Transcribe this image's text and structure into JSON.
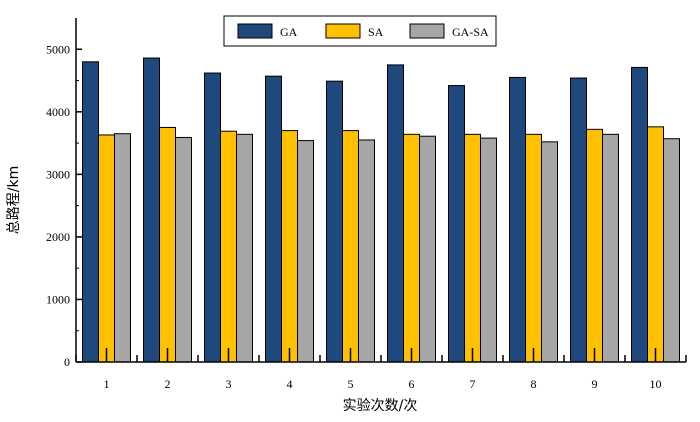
{
  "chart_data": {
    "type": "bar",
    "title": "",
    "xlabel": "实验次数/次",
    "ylabel": "总路程/km",
    "categories": [
      "1",
      "2",
      "3",
      "4",
      "5",
      "6",
      "7",
      "8",
      "9",
      "10"
    ],
    "ylim": [
      0,
      5500
    ],
    "yticks": [
      0,
      1000,
      2000,
      3000,
      4000,
      5000
    ],
    "legend_position": "top-center",
    "grid": false,
    "series": [
      {
        "name": "GA",
        "color": "#1f497d",
        "values": [
          4800,
          4860,
          4620,
          4570,
          4490,
          4750,
          4420,
          4550,
          4540,
          4710
        ]
      },
      {
        "name": "SA",
        "color": "#ffc000",
        "values": [
          3630,
          3750,
          3690,
          3700,
          3700,
          3640,
          3640,
          3640,
          3720,
          3760
        ]
      },
      {
        "name": "GA-SA",
        "color": "#a6a6a6",
        "values": [
          3650,
          3590,
          3640,
          3540,
          3550,
          3610,
          3580,
          3520,
          3640,
          3570
        ]
      }
    ]
  }
}
